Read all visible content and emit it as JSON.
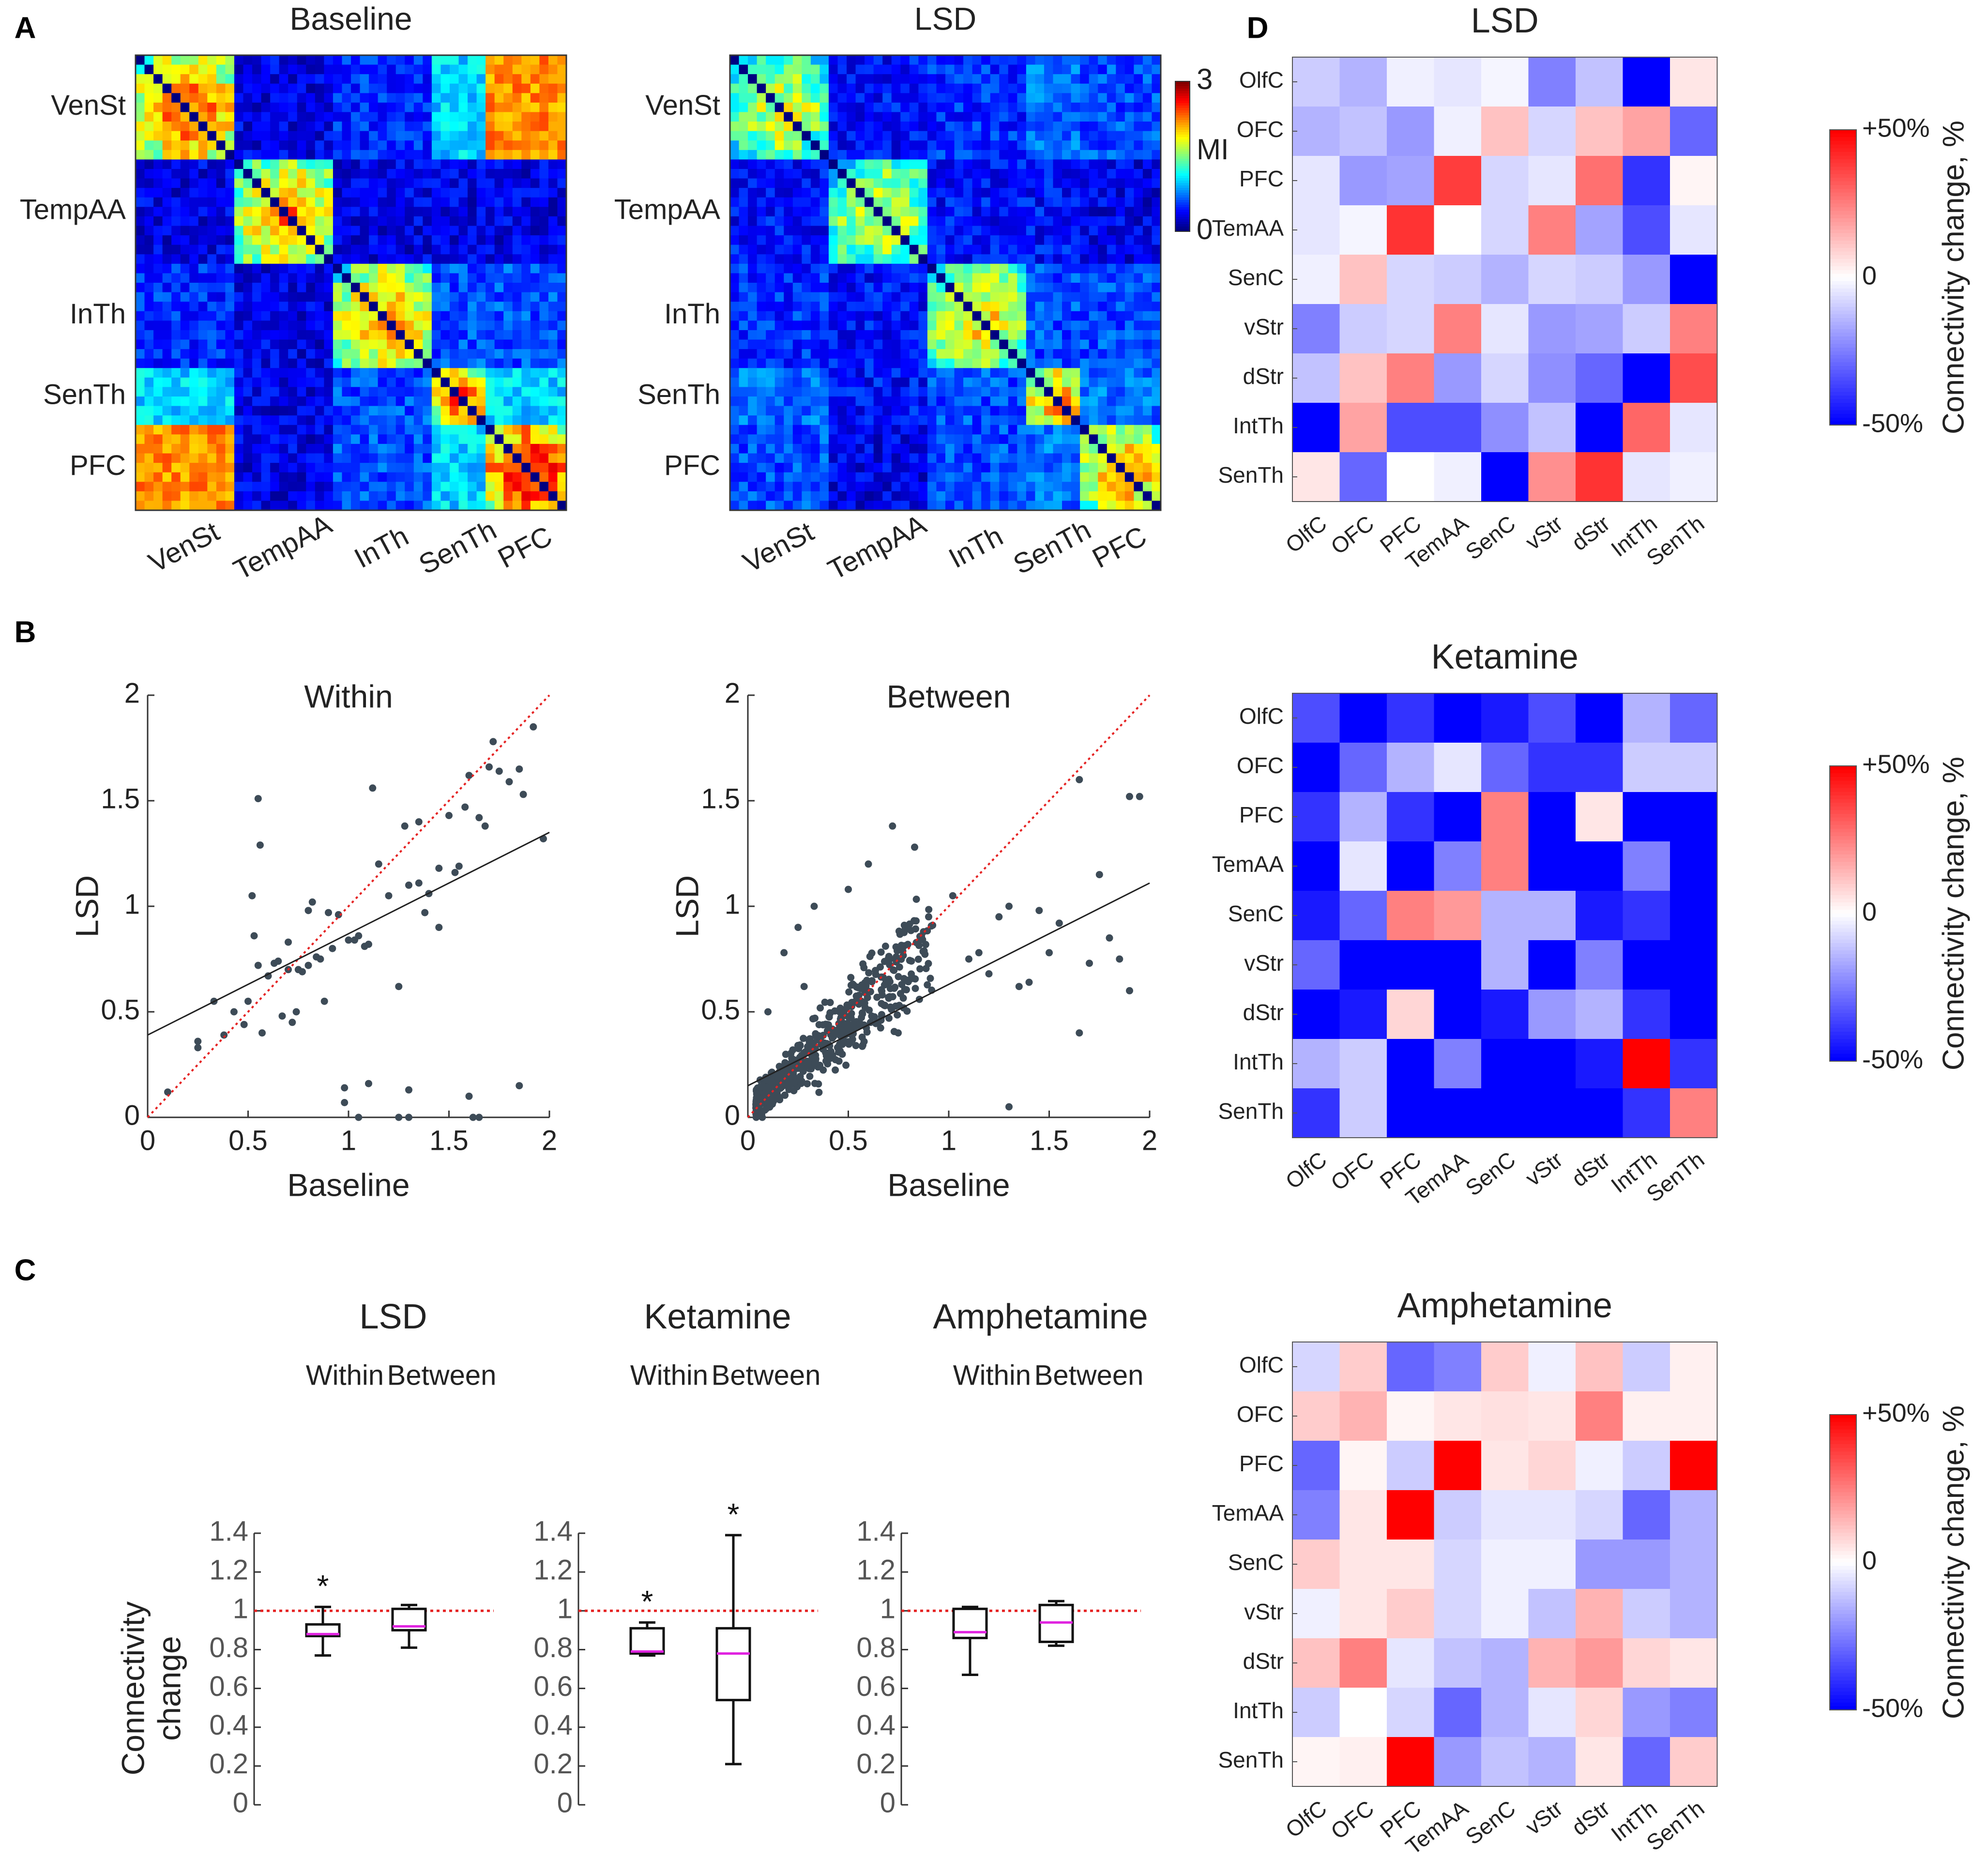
{
  "figure": {
    "panel_labels": [
      "A",
      "B",
      "C",
      "D"
    ],
    "colorbar_mi": {
      "label": "MI",
      "ticks": [
        "3",
        "0"
      ],
      "range": [
        0,
        3
      ]
    },
    "colorbar_change": {
      "label": "Connectivity change, %",
      "ticks": [
        "+50%",
        "0",
        "-50%"
      ],
      "range": [
        -50,
        50
      ]
    }
  },
  "chart_data": [
    {
      "id": "A-baseline",
      "type": "heatmap",
      "title": "Baseline",
      "n": 48,
      "group_labels": [
        "VenSt",
        "TempAA",
        "InTh",
        "SenTh",
        "PFC"
      ],
      "group_sizes": [
        11,
        11,
        11,
        6,
        9
      ],
      "blocks": [
        [
          2.2,
          0.3,
          0.5,
          1.0,
          2.2
        ],
        [
          0.3,
          2.0,
          0.3,
          0.3,
          0.3
        ],
        [
          0.5,
          0.3,
          2.0,
          0.6,
          0.6
        ],
        [
          1.0,
          0.3,
          0.6,
          2.2,
          1.0
        ],
        [
          2.2,
          0.3,
          0.6,
          1.0,
          2.5
        ]
      ],
      "scale": [
        0,
        3
      ]
    },
    {
      "id": "A-lsd",
      "type": "heatmap",
      "title": "LSD",
      "n": 48,
      "group_labels": [
        "VenSt",
        "TempAA",
        "InTh",
        "SenTh",
        "PFC"
      ],
      "group_sizes": [
        11,
        11,
        11,
        6,
        9
      ],
      "blocks": [
        [
          1.6,
          0.4,
          0.5,
          0.7,
          0.6
        ],
        [
          0.4,
          1.6,
          0.4,
          0.4,
          0.3
        ],
        [
          0.5,
          0.4,
          1.8,
          0.6,
          0.6
        ],
        [
          0.7,
          0.4,
          0.6,
          2.1,
          0.7
        ],
        [
          0.6,
          0.3,
          0.6,
          0.7,
          2.0
        ]
      ],
      "scale": [
        0,
        3
      ]
    },
    {
      "id": "B-within",
      "type": "scatter",
      "title": "Within",
      "xlabel": "Baseline",
      "ylabel": "LSD",
      "xlim": [
        0,
        2
      ],
      "ylim": [
        0,
        2
      ],
      "xticks": [
        "0",
        "0.5",
        "1",
        "1.5",
        "2"
      ],
      "yticks": [
        "0",
        "0.5",
        "1",
        "1.5",
        "2"
      ],
      "identity_line": true,
      "fit": {
        "slope": 0.48,
        "intercept": 0.39
      },
      "points": [
        [
          0.1,
          0.12
        ],
        [
          0.25,
          0.33
        ],
        [
          0.25,
          0.36
        ],
        [
          0.33,
          0.55
        ],
        [
          0.38,
          0.39
        ],
        [
          0.43,
          0.5
        ],
        [
          0.48,
          0.44
        ],
        [
          0.5,
          0.55
        ],
        [
          0.52,
          1.05
        ],
        [
          0.53,
          0.86
        ],
        [
          0.55,
          1.51
        ],
        [
          0.56,
          1.29
        ],
        [
          0.57,
          0.4
        ],
        [
          0.6,
          0.67
        ],
        [
          0.63,
          0.73
        ],
        [
          0.65,
          0.74
        ],
        [
          0.67,
          0.48
        ],
        [
          0.7,
          0.7
        ],
        [
          0.72,
          0.45
        ],
        [
          0.74,
          0.5
        ],
        [
          0.75,
          0.7
        ],
        [
          0.77,
          0.69
        ],
        [
          0.8,
          0.72
        ],
        [
          0.8,
          0.98
        ],
        [
          0.82,
          1.02
        ],
        [
          0.84,
          0.76
        ],
        [
          0.86,
          0.75
        ],
        [
          0.88,
          0.55
        ],
        [
          0.92,
          0.8
        ],
        [
          0.95,
          0.96
        ],
        [
          1.0,
          0.84
        ],
        [
          1.03,
          0.84
        ],
        [
          1.05,
          0.86
        ],
        [
          1.08,
          0.81
        ],
        [
          1.1,
          0.82
        ],
        [
          1.15,
          1.2
        ],
        [
          1.2,
          1.05
        ],
        [
          1.25,
          0.62
        ],
        [
          1.28,
          1.38
        ],
        [
          1.3,
          1.1
        ],
        [
          1.35,
          1.11
        ],
        [
          1.38,
          0.97
        ],
        [
          1.4,
          1.06
        ],
        [
          1.45,
          1.18
        ],
        [
          1.5,
          1.43
        ],
        [
          1.53,
          1.16
        ],
        [
          1.58,
          1.47
        ],
        [
          1.6,
          1.62
        ],
        [
          1.65,
          1.42
        ],
        [
          1.68,
          1.38
        ],
        [
          1.7,
          1.66
        ],
        [
          1.72,
          1.78
        ],
        [
          1.75,
          1.64
        ],
        [
          1.8,
          1.59
        ],
        [
          1.85,
          1.65
        ],
        [
          1.87,
          1.53
        ],
        [
          1.92,
          1.85
        ],
        [
          1.97,
          1.32
        ],
        [
          1.55,
          1.19
        ],
        [
          1.45,
          0.9
        ],
        [
          1.35,
          1.4
        ],
        [
          0.98,
          0.14
        ],
        [
          1.1,
          0.16
        ],
        [
          1.3,
          0.13
        ],
        [
          1.6,
          0.1
        ],
        [
          1.85,
          0.15
        ],
        [
          0.98,
          0.07
        ],
        [
          1.05,
          0.0
        ],
        [
          1.25,
          0.0
        ],
        [
          1.3,
          0.0
        ],
        [
          1.62,
          0.0
        ],
        [
          1.65,
          0.0
        ],
        [
          0.55,
          0.72
        ],
        [
          0.7,
          0.83
        ],
        [
          0.9,
          0.97
        ],
        [
          1.12,
          1.56
        ]
      ]
    },
    {
      "id": "B-between",
      "type": "scatter",
      "title": "Between",
      "xlabel": "Baseline",
      "ylabel": "LSD",
      "xlim": [
        0,
        2
      ],
      "ylim": [
        0,
        2
      ],
      "xticks": [
        "0",
        "0.5",
        "1",
        "1.5",
        "2"
      ],
      "yticks": [
        "0",
        "0.5",
        "1",
        "1.5",
        "2"
      ],
      "identity_line": true,
      "fit": {
        "slope": 0.48,
        "intercept": 0.15
      },
      "n_points": 520,
      "outliers": [
        [
          1.3,
          0.05
        ],
        [
          1.65,
          0.4
        ],
        [
          1.9,
          0.6
        ],
        [
          1.75,
          1.15
        ],
        [
          1.9,
          1.52
        ],
        [
          1.95,
          1.52
        ],
        [
          1.8,
          0.85
        ],
        [
          1.7,
          0.73
        ],
        [
          1.55,
          0.92
        ],
        [
          1.45,
          0.98
        ],
        [
          1.35,
          0.62
        ],
        [
          1.4,
          0.64
        ],
        [
          1.25,
          0.95
        ],
        [
          1.2,
          0.68
        ],
        [
          1.1,
          0.75
        ],
        [
          1.15,
          0.78
        ],
        [
          1.02,
          1.05
        ],
        [
          0.9,
          0.95
        ],
        [
          0.72,
          1.38
        ],
        [
          0.83,
          1.28
        ],
        [
          0.6,
          1.2
        ],
        [
          0.25,
          0.9
        ],
        [
          0.33,
          1.0
        ],
        [
          0.5,
          1.08
        ],
        [
          0.18,
          0.78
        ],
        [
          1.65,
          1.6
        ],
        [
          1.5,
          0.78
        ],
        [
          1.85,
          0.75
        ],
        [
          1.3,
          1.0
        ],
        [
          0.28,
          0.62
        ],
        [
          0.1,
          0.5
        ]
      ]
    },
    {
      "id": "C",
      "type": "box",
      "ylabel": "Connectivity change",
      "ylim": [
        0,
        1.4
      ],
      "yticks": [
        "0",
        "0.2",
        "0.4",
        "0.6",
        "0.8",
        "1",
        "1.2",
        "1.4"
      ],
      "reference": 1,
      "groups": [
        {
          "title": "LSD",
          "categories": [
            "Within",
            "Between"
          ],
          "boxes": [
            {
              "min": 0.77,
              "q1": 0.87,
              "median": 0.88,
              "q3": 0.93,
              "max": 1.02,
              "star": "*"
            },
            {
              "min": 0.81,
              "q1": 0.9,
              "median": 0.92,
              "q3": 1.01,
              "max": 1.03,
              "star": ""
            }
          ]
        },
        {
          "title": "Ketamine",
          "categories": [
            "Within",
            "Between"
          ],
          "boxes": [
            {
              "min": 0.77,
              "q1": 0.78,
              "median": 0.79,
              "q3": 0.91,
              "max": 0.94,
              "star": "*"
            },
            {
              "min": 0.21,
              "q1": 0.54,
              "median": 0.78,
              "q3": 0.91,
              "max": 1.39,
              "star": "*"
            }
          ]
        },
        {
          "title": "Amphetamine",
          "categories": [
            "Within",
            "Between"
          ],
          "boxes": [
            {
              "min": 0.67,
              "q1": 0.86,
              "median": 0.89,
              "q3": 1.01,
              "max": 1.02,
              "star": ""
            },
            {
              "min": 0.82,
              "q1": 0.84,
              "median": 0.94,
              "q3": 1.03,
              "max": 1.05,
              "star": ""
            }
          ]
        }
      ]
    },
    {
      "id": "D-lsd",
      "type": "heatmap",
      "title": "LSD",
      "labels": [
        "OlfC",
        "OFC",
        "PFC",
        "TemAA",
        "SenC",
        "vStr",
        "dStr",
        "IntTh",
        "SenTh"
      ],
      "scale": [
        -50,
        50
      ],
      "values": [
        [
          -10,
          -15,
          -3,
          -5,
          -2,
          -25,
          -12,
          -60,
          5
        ],
        [
          -15,
          -12,
          -20,
          -3,
          12,
          -8,
          12,
          18,
          -30
        ],
        [
          -5,
          -20,
          -18,
          38,
          -8,
          -5,
          28,
          -40,
          2
        ],
        [
          -5,
          -2,
          40,
          0,
          -8,
          25,
          -18,
          -35,
          -5
        ],
        [
          -3,
          12,
          -8,
          -10,
          -15,
          -8,
          -10,
          -20,
          -80
        ],
        [
          -25,
          -10,
          -8,
          25,
          -5,
          -20,
          -18,
          -10,
          25
        ],
        [
          -12,
          12,
          25,
          -20,
          -8,
          -22,
          -30,
          -55,
          35
        ],
        [
          -55,
          18,
          -35,
          -35,
          -22,
          -12,
          -55,
          30,
          -5
        ],
        [
          5,
          -30,
          0,
          -3,
          -80,
          22,
          40,
          -5,
          -3
        ]
      ]
    },
    {
      "id": "D-ketamine",
      "type": "heatmap",
      "title": "Ketamine",
      "labels": [
        "OlfC",
        "OFC",
        "PFC",
        "TemAA",
        "SenC",
        "vStr",
        "dStr",
        "IntTh",
        "SenTh"
      ],
      "scale": [
        -50,
        50
      ],
      "values": [
        [
          -35,
          -90,
          -40,
          -90,
          -45,
          -35,
          -75,
          -15,
          -30
        ],
        [
          -90,
          -30,
          -15,
          -5,
          -30,
          -40,
          -40,
          -10,
          -10
        ],
        [
          -40,
          -15,
          -40,
          -90,
          25,
          -80,
          5,
          -70,
          -85
        ],
        [
          -90,
          -5,
          -80,
          -25,
          25,
          -85,
          -85,
          -25,
          -60
        ],
        [
          -45,
          -30,
          25,
          20,
          -15,
          -15,
          -45,
          -40,
          -60
        ],
        [
          -30,
          -50,
          -75,
          -90,
          -15,
          -70,
          -25,
          -60,
          -85
        ],
        [
          -70,
          -45,
          8,
          -90,
          -45,
          -20,
          -15,
          -40,
          -75
        ],
        [
          -15,
          -10,
          -80,
          -25,
          -50,
          -70,
          -45,
          50,
          -40
        ],
        [
          -40,
          -10,
          -90,
          -75,
          -85,
          -90,
          -80,
          -40,
          25
        ]
      ]
    },
    {
      "id": "D-amphetamine",
      "type": "heatmap",
      "title": "Amphetamine",
      "labels": [
        "OlfC",
        "OFC",
        "PFC",
        "TemAA",
        "SenC",
        "vStr",
        "dStr",
        "IntTh",
        "SenTh"
      ],
      "scale": [
        -50,
        50
      ],
      "values": [
        [
          -8,
          10,
          -30,
          -25,
          10,
          -3,
          12,
          -10,
          3
        ],
        [
          10,
          15,
          2,
          5,
          6,
          5,
          25,
          3,
          3
        ],
        [
          -30,
          2,
          -10,
          55,
          5,
          8,
          -3,
          -10,
          60
        ],
        [
          -25,
          5,
          55,
          -10,
          -5,
          -5,
          -8,
          -30,
          -15
        ],
        [
          10,
          5,
          5,
          -8,
          -3,
          -3,
          -20,
          -20,
          -15
        ],
        [
          -3,
          5,
          10,
          -8,
          -3,
          -12,
          15,
          -10,
          -15
        ],
        [
          12,
          25,
          -5,
          -12,
          -15,
          15,
          20,
          8,
          5
        ],
        [
          -10,
          0,
          -8,
          -30,
          -15,
          -5,
          8,
          -20,
          -25
        ],
        [
          2,
          3,
          60,
          -20,
          -12,
          -15,
          5,
          -30,
          10
        ]
      ]
    }
  ]
}
